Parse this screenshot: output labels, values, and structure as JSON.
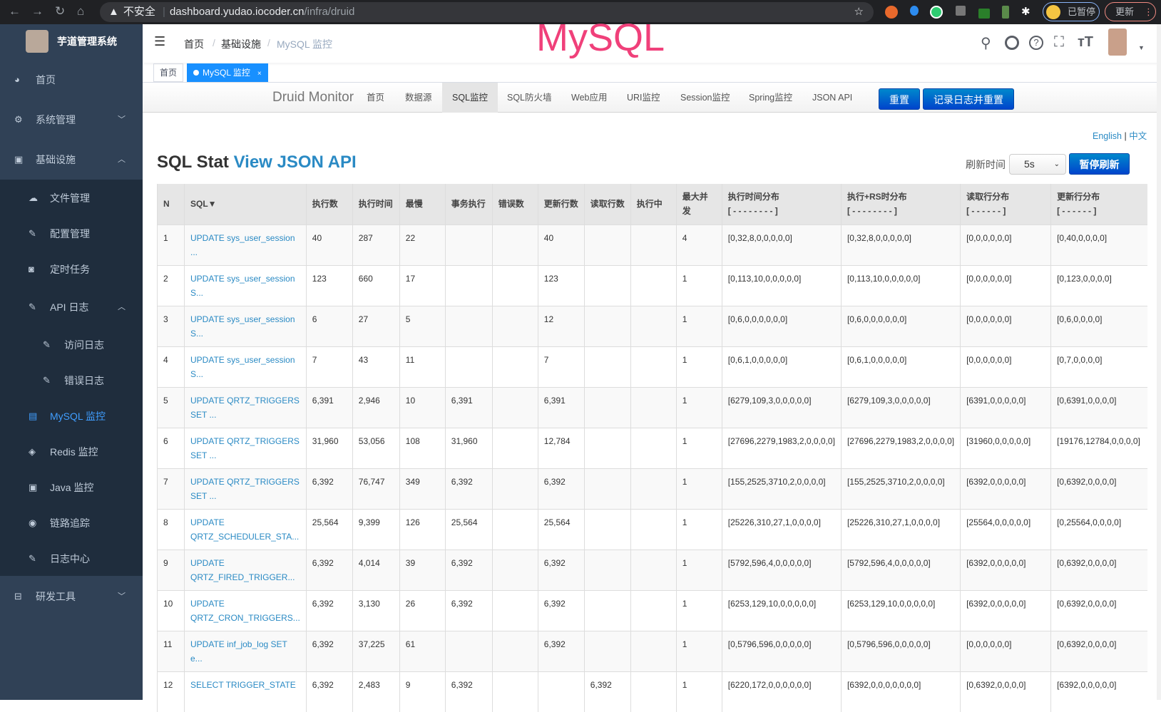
{
  "browser": {
    "insecure": "不安全",
    "url_host": "dashboard.yudao.iocoder.cn",
    "url_path": "/infra/druid",
    "paused": "已暂停",
    "update": "更新"
  },
  "sidebar": {
    "brand": "芋道管理系统",
    "items": [
      {
        "label": "首页",
        "icon": "dashboard-icon"
      },
      {
        "label": "系统管理",
        "icon": "gear-icon",
        "arrow": "﹀"
      },
      {
        "label": "基础设施",
        "icon": "monitor-icon",
        "arrow": "︿"
      },
      {
        "label": "文件管理",
        "icon": "upload-icon"
      },
      {
        "label": "配置管理",
        "icon": "edit-icon"
      },
      {
        "label": "定时任务",
        "icon": "job-icon"
      },
      {
        "label": "API 日志",
        "icon": "log-icon",
        "arrow": "︿"
      },
      {
        "label": "访问日志",
        "icon": "form-icon"
      },
      {
        "label": "错误日志",
        "icon": "form-icon"
      },
      {
        "label": "MySQL 监控",
        "icon": "server-icon"
      },
      {
        "label": "Redis 监控",
        "icon": "redis-icon"
      },
      {
        "label": "Java 监控",
        "icon": "monitor-icon"
      },
      {
        "label": "链路追踪",
        "icon": "eye-icon"
      },
      {
        "label": "日志中心",
        "icon": "log-icon"
      },
      {
        "label": "研发工具",
        "icon": "tool-icon",
        "arrow": "﹀"
      }
    ]
  },
  "header": {
    "breadcrumb": [
      "首页",
      "基础设施",
      "MySQL 监控"
    ],
    "overlay_title": "MySQL"
  },
  "tags": [
    {
      "label": "首页"
    },
    {
      "label": "MySQL 监控"
    }
  ],
  "druid": {
    "brand": "Druid Monitor",
    "nav": [
      "首页",
      "数据源",
      "SQL监控",
      "SQL防火墙",
      "Web应用",
      "URI监控",
      "Session监控",
      "Spring监控",
      "JSON API"
    ],
    "active": "SQL监控",
    "reset": "重置",
    "log_reset": "记录日志并重置"
  },
  "content": {
    "lang_en": "English",
    "lang_sep": "|",
    "lang_zh": "中文",
    "title": "SQL Stat",
    "title_link": "View JSON API",
    "refresh_label": "刷新时间",
    "refresh_value": "5s",
    "pause": "暂停刷新"
  },
  "table": {
    "headers": [
      "N",
      "SQL▼",
      "执行数",
      "执行时间",
      "最慢",
      "事务执行",
      "错误数",
      "更新行数",
      "读取行数",
      "执行中",
      "最大并发",
      "执行时间分布\n[ - - - - - - - - ]",
      "执行+RS时分布\n[ - - - - - - - - ]",
      "读取行分布\n[ - - - - - - ]",
      "更新行分布\n[ - - - - - - ]"
    ],
    "rows": [
      [
        "1",
        "UPDATE sys_user_session ...",
        "40",
        "287",
        "22",
        "",
        "",
        "40",
        "",
        "",
        "4",
        "[0,32,8,0,0,0,0,0]",
        "[0,32,8,0,0,0,0,0]",
        "[0,0,0,0,0,0]",
        "[0,40,0,0,0,0]"
      ],
      [
        "2",
        "UPDATE sys_user_session S...",
        "123",
        "660",
        "17",
        "",
        "",
        "123",
        "",
        "",
        "1",
        "[0,113,10,0,0,0,0,0]",
        "[0,113,10,0,0,0,0,0]",
        "[0,0,0,0,0,0]",
        "[0,123,0,0,0,0]"
      ],
      [
        "3",
        "UPDATE sys_user_session S...",
        "6",
        "27",
        "5",
        "",
        "",
        "12",
        "",
        "",
        "1",
        "[0,6,0,0,0,0,0,0]",
        "[0,6,0,0,0,0,0,0]",
        "[0,0,0,0,0,0]",
        "[0,6,0,0,0,0]"
      ],
      [
        "4",
        "UPDATE sys_user_session S...",
        "7",
        "43",
        "11",
        "",
        "",
        "7",
        "",
        "",
        "1",
        "[0,6,1,0,0,0,0,0]",
        "[0,6,1,0,0,0,0,0]",
        "[0,0,0,0,0,0]",
        "[0,7,0,0,0,0]"
      ],
      [
        "5",
        "UPDATE QRTZ_TRIGGERS SET ...",
        "6,391",
        "2,946",
        "10",
        "6,391",
        "",
        "6,391",
        "",
        "",
        "1",
        "[6279,109,3,0,0,0,0,0]",
        "[6279,109,3,0,0,0,0,0]",
        "[6391,0,0,0,0,0]",
        "[0,6391,0,0,0,0]"
      ],
      [
        "6",
        "UPDATE QRTZ_TRIGGERS SET ...",
        "31,960",
        "53,056",
        "108",
        "31,960",
        "",
        "12,784",
        "",
        "",
        "1",
        "[27696,2279,1983,2,0,0,0,0]",
        "[27696,2279,1983,2,0,0,0,0]",
        "[31960,0,0,0,0,0]",
        "[19176,12784,0,0,0,0]"
      ],
      [
        "7",
        "UPDATE QRTZ_TRIGGERS SET ...",
        "6,392",
        "76,747",
        "349",
        "6,392",
        "",
        "6,392",
        "",
        "",
        "1",
        "[155,2525,3710,2,0,0,0,0]",
        "[155,2525,3710,2,0,0,0,0]",
        "[6392,0,0,0,0,0]",
        "[0,6392,0,0,0,0]"
      ],
      [
        "8",
        "UPDATE QRTZ_SCHEDULER_STA...",
        "25,564",
        "9,399",
        "126",
        "25,564",
        "",
        "25,564",
        "",
        "",
        "1",
        "[25226,310,27,1,0,0,0,0]",
        "[25226,310,27,1,0,0,0,0]",
        "[25564,0,0,0,0,0]",
        "[0,25564,0,0,0,0]"
      ],
      [
        "9",
        "UPDATE QRTZ_FIRED_TRIGGER...",
        "6,392",
        "4,014",
        "39",
        "6,392",
        "",
        "6,392",
        "",
        "",
        "1",
        "[5792,596,4,0,0,0,0,0]",
        "[5792,596,4,0,0,0,0,0]",
        "[6392,0,0,0,0,0]",
        "[0,6392,0,0,0,0]"
      ],
      [
        "10",
        "UPDATE QRTZ_CRON_TRIGGERS...",
        "6,392",
        "3,130",
        "26",
        "6,392",
        "",
        "6,392",
        "",
        "",
        "1",
        "[6253,129,10,0,0,0,0,0]",
        "[6253,129,10,0,0,0,0,0]",
        "[6392,0,0,0,0,0]",
        "[0,6392,0,0,0,0]"
      ],
      [
        "11",
        "UPDATE inf_job_log SET e...",
        "6,392",
        "37,225",
        "61",
        "",
        "",
        "6,392",
        "",
        "",
        "1",
        "[0,5796,596,0,0,0,0,0]",
        "[0,5796,596,0,0,0,0,0]",
        "[0,0,0,0,0,0]",
        "[0,6392,0,0,0,0]"
      ],
      [
        "12",
        "SELECT TRIGGER_STATE",
        "6,392",
        "2,483",
        "9",
        "6,392",
        "",
        "",
        "6,392",
        "",
        "1",
        "[6220,172,0,0,0,0,0,0]",
        "[6392,0,0,0,0,0,0,0]",
        "[0,6392,0,0,0,0]",
        "[6392,0,0,0,0,0]"
      ]
    ]
  },
  "colors": {
    "sidebar": "#304156",
    "submenu": "#1f2d3d",
    "active": "#409eff",
    "link": "#2a8ac4",
    "overlay": "#f0407a"
  }
}
